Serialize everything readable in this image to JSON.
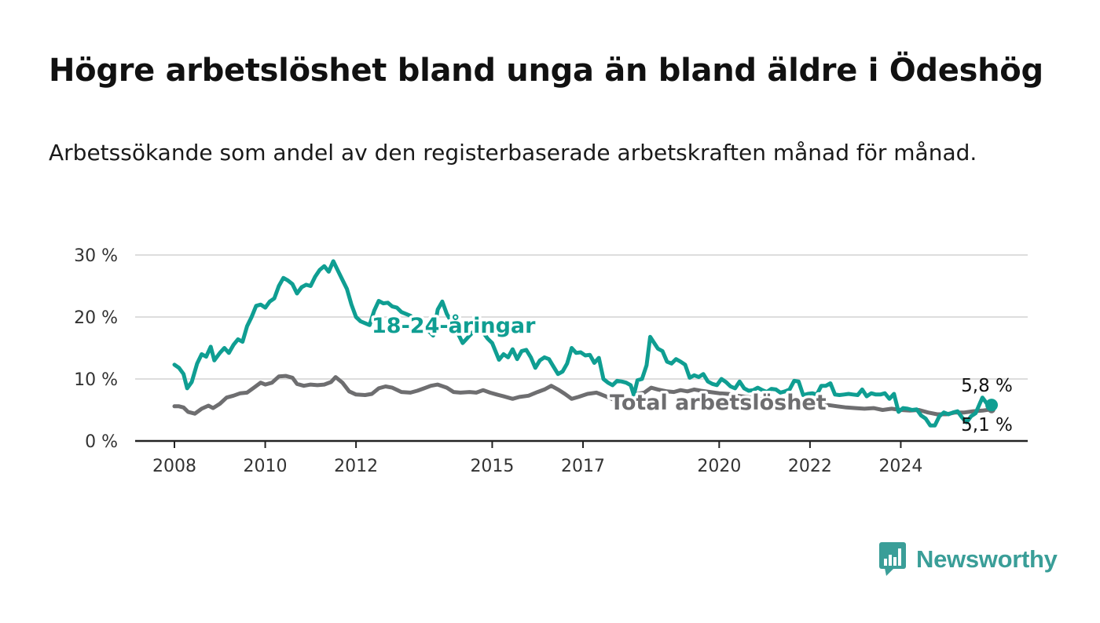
{
  "title": "Högre arbetslöshet bland unga än bland äldre i Ödeshög",
  "subtitle": "Arbetssökande som andel av den registerbaserade arbetskraften månad för månad.",
  "brand": {
    "name": "Newsworthy"
  },
  "colors": {
    "youth": "#0f9e92",
    "total": "#6e6e70",
    "axis": "#222222",
    "grid": "#dddddd"
  },
  "chart_data": {
    "type": "line",
    "xlim": [
      2007.75,
      2025.7
    ],
    "ylim": [
      0,
      30
    ],
    "y_ticks": [
      0,
      10,
      20,
      30
    ],
    "y_tick_labels": [
      "0 %",
      "10 %",
      "20 %",
      "30 %"
    ],
    "x_ticks": [
      2008,
      2010,
      2012,
      2015,
      2017,
      2020,
      2022,
      2024
    ],
    "x_tick_labels": [
      "2008",
      "2010",
      "2012",
      "2015",
      "2017",
      "2020",
      "2022",
      "2024"
    ],
    "grid": true,
    "series": [
      {
        "name": "18-24-åringar",
        "color": "#0f9e92",
        "end_label": "5,8 %",
        "points": [
          [
            2008.0,
            12.3
          ],
          [
            2008.1,
            11.8
          ],
          [
            2008.2,
            10.8
          ],
          [
            2008.28,
            8.5
          ],
          [
            2008.38,
            9.5
          ],
          [
            2008.5,
            12.5
          ],
          [
            2008.6,
            14.0
          ],
          [
            2008.7,
            13.6
          ],
          [
            2008.8,
            15.2
          ],
          [
            2008.88,
            13.0
          ],
          [
            2009.0,
            14.2
          ],
          [
            2009.1,
            15.0
          ],
          [
            2009.2,
            14.2
          ],
          [
            2009.3,
            15.5
          ],
          [
            2009.4,
            16.4
          ],
          [
            2009.5,
            16.0
          ],
          [
            2009.6,
            18.5
          ],
          [
            2009.7,
            20.0
          ],
          [
            2009.8,
            21.8
          ],
          [
            2009.9,
            22.0
          ],
          [
            2010.0,
            21.5
          ],
          [
            2010.1,
            22.5
          ],
          [
            2010.2,
            23.0
          ],
          [
            2010.3,
            25.0
          ],
          [
            2010.4,
            26.3
          ],
          [
            2010.5,
            25.9
          ],
          [
            2010.6,
            25.3
          ],
          [
            2010.7,
            23.8
          ],
          [
            2010.8,
            24.8
          ],
          [
            2010.9,
            25.2
          ],
          [
            2011.0,
            25.0
          ],
          [
            2011.1,
            26.5
          ],
          [
            2011.2,
            27.6
          ],
          [
            2011.3,
            28.2
          ],
          [
            2011.4,
            27.3
          ],
          [
            2011.5,
            29.0
          ],
          [
            2011.6,
            27.5
          ],
          [
            2011.7,
            26.0
          ],
          [
            2011.8,
            24.5
          ],
          [
            2011.9,
            22.0
          ],
          [
            2012.0,
            20.0
          ],
          [
            2012.1,
            19.3
          ],
          [
            2012.2,
            19.0
          ],
          [
            2012.3,
            18.7
          ],
          [
            2012.4,
            21.0
          ],
          [
            2012.5,
            22.6
          ],
          [
            2012.6,
            22.2
          ],
          [
            2012.7,
            22.3
          ],
          [
            2012.8,
            21.7
          ],
          [
            2012.9,
            21.5
          ],
          [
            2013.0,
            20.8
          ],
          [
            2013.2,
            20.2
          ],
          [
            2013.5,
            18.5
          ],
          [
            2013.7,
            17.0
          ],
          [
            2013.8,
            21.2
          ],
          [
            2013.9,
            22.5
          ],
          [
            2014.0,
            20.5
          ],
          [
            2014.2,
            18.0
          ],
          [
            2014.35,
            15.8
          ],
          [
            2014.5,
            17.0
          ],
          [
            2014.7,
            18.5
          ],
          [
            2014.9,
            16.5
          ],
          [
            2015.0,
            15.8
          ],
          [
            2015.15,
            13.1
          ],
          [
            2015.25,
            14.0
          ],
          [
            2015.35,
            13.5
          ],
          [
            2015.45,
            14.8
          ],
          [
            2015.55,
            13.2
          ],
          [
            2015.65,
            14.5
          ],
          [
            2015.75,
            14.7
          ],
          [
            2015.85,
            13.5
          ],
          [
            2015.95,
            11.8
          ],
          [
            2016.05,
            13.0
          ],
          [
            2016.15,
            13.5
          ],
          [
            2016.25,
            13.2
          ],
          [
            2016.35,
            12.0
          ],
          [
            2016.45,
            10.8
          ],
          [
            2016.55,
            11.2
          ],
          [
            2016.65,
            12.5
          ],
          [
            2016.75,
            15.0
          ],
          [
            2016.85,
            14.2
          ],
          [
            2016.95,
            14.3
          ],
          [
            2017.05,
            13.8
          ],
          [
            2017.15,
            13.9
          ],
          [
            2017.25,
            12.6
          ],
          [
            2017.35,
            13.4
          ],
          [
            2017.45,
            10.0
          ],
          [
            2017.55,
            9.4
          ],
          [
            2017.65,
            9.0
          ],
          [
            2017.75,
            9.7
          ],
          [
            2017.85,
            9.6
          ],
          [
            2017.95,
            9.4
          ],
          [
            2018.05,
            9.0
          ],
          [
            2018.12,
            7.4
          ],
          [
            2018.2,
            9.8
          ],
          [
            2018.3,
            10.0
          ],
          [
            2018.4,
            12.2
          ],
          [
            2018.48,
            16.8
          ],
          [
            2018.55,
            16.0
          ],
          [
            2018.65,
            14.9
          ],
          [
            2018.75,
            14.5
          ],
          [
            2018.85,
            12.8
          ],
          [
            2018.95,
            12.5
          ],
          [
            2019.05,
            13.2
          ],
          [
            2019.15,
            12.8
          ],
          [
            2019.25,
            12.3
          ],
          [
            2019.35,
            10.2
          ],
          [
            2019.45,
            10.6
          ],
          [
            2019.55,
            10.3
          ],
          [
            2019.65,
            10.8
          ],
          [
            2019.75,
            9.6
          ],
          [
            2019.85,
            9.2
          ],
          [
            2019.95,
            9.0
          ],
          [
            2020.05,
            10.0
          ],
          [
            2020.15,
            9.5
          ],
          [
            2020.25,
            8.8
          ],
          [
            2020.35,
            8.5
          ],
          [
            2020.45,
            9.6
          ],
          [
            2020.55,
            8.5
          ],
          [
            2020.65,
            8.1
          ],
          [
            2020.75,
            8.2
          ],
          [
            2020.85,
            8.6
          ],
          [
            2020.95,
            8.2
          ],
          [
            2021.05,
            7.9
          ],
          [
            2021.15,
            8.4
          ],
          [
            2021.25,
            8.3
          ],
          [
            2021.35,
            7.8
          ],
          [
            2021.45,
            8.0
          ],
          [
            2021.55,
            8.3
          ],
          [
            2021.65,
            9.7
          ],
          [
            2021.75,
            9.6
          ],
          [
            2021.85,
            7.4
          ],
          [
            2021.95,
            7.6
          ],
          [
            2022.05,
            7.7
          ],
          [
            2022.15,
            7.5
          ],
          [
            2022.25,
            8.9
          ],
          [
            2022.35,
            8.9
          ],
          [
            2022.45,
            9.3
          ],
          [
            2022.55,
            7.5
          ],
          [
            2022.65,
            7.4
          ],
          [
            2022.75,
            7.5
          ],
          [
            2022.85,
            7.6
          ],
          [
            2022.95,
            7.5
          ],
          [
            2023.05,
            7.4
          ],
          [
            2023.15,
            8.3
          ],
          [
            2023.25,
            7.2
          ],
          [
            2023.35,
            7.7
          ],
          [
            2023.45,
            7.5
          ],
          [
            2023.55,
            7.5
          ],
          [
            2023.65,
            7.7
          ],
          [
            2023.75,
            6.8
          ],
          [
            2023.85,
            7.6
          ],
          [
            2023.95,
            4.7
          ],
          [
            2024.05,
            5.3
          ],
          [
            2024.15,
            5.2
          ],
          [
            2024.25,
            5.0
          ],
          [
            2024.35,
            5.1
          ],
          [
            2024.45,
            4.1
          ],
          [
            2024.55,
            3.6
          ],
          [
            2024.65,
            2.5
          ],
          [
            2024.75,
            2.5
          ],
          [
            2024.85,
            4.0
          ],
          [
            2024.95,
            4.6
          ],
          [
            2025.05,
            4.3
          ],
          [
            2025.15,
            4.6
          ],
          [
            2025.25,
            4.8
          ],
          [
            2025.35,
            3.8
          ],
          [
            2025.45,
            3.0
          ],
          [
            2025.55,
            4.0
          ],
          [
            2025.65,
            4.5
          ],
          [
            2025.75,
            6.2
          ],
          [
            2025.8,
            7.0
          ],
          [
            2025.9,
            6.0
          ],
          [
            2026.0,
            5.8
          ]
        ]
      },
      {
        "name": "Total arbetslöshet",
        "color": "#6e6e70",
        "end_label": "5,1 %",
        "points": [
          [
            2008.0,
            5.6
          ],
          [
            2008.1,
            5.6
          ],
          [
            2008.2,
            5.4
          ],
          [
            2008.3,
            4.7
          ],
          [
            2008.45,
            4.4
          ],
          [
            2008.6,
            5.2
          ],
          [
            2008.75,
            5.7
          ],
          [
            2008.85,
            5.3
          ],
          [
            2009.0,
            6.0
          ],
          [
            2009.15,
            7.0
          ],
          [
            2009.3,
            7.3
          ],
          [
            2009.45,
            7.7
          ],
          [
            2009.6,
            7.8
          ],
          [
            2009.75,
            8.6
          ],
          [
            2009.9,
            9.4
          ],
          [
            2010.0,
            9.1
          ],
          [
            2010.15,
            9.4
          ],
          [
            2010.3,
            10.4
          ],
          [
            2010.45,
            10.5
          ],
          [
            2010.6,
            10.2
          ],
          [
            2010.7,
            9.2
          ],
          [
            2010.85,
            8.9
          ],
          [
            2011.0,
            9.1
          ],
          [
            2011.15,
            9.0
          ],
          [
            2011.3,
            9.1
          ],
          [
            2011.45,
            9.5
          ],
          [
            2011.55,
            10.3
          ],
          [
            2011.7,
            9.4
          ],
          [
            2011.85,
            8.0
          ],
          [
            2012.0,
            7.5
          ],
          [
            2012.2,
            7.4
          ],
          [
            2012.35,
            7.6
          ],
          [
            2012.5,
            8.5
          ],
          [
            2012.65,
            8.8
          ],
          [
            2012.8,
            8.6
          ],
          [
            2013.0,
            7.9
          ],
          [
            2013.2,
            7.8
          ],
          [
            2013.35,
            8.1
          ],
          [
            2013.5,
            8.5
          ],
          [
            2013.65,
            8.9
          ],
          [
            2013.8,
            9.1
          ],
          [
            2014.0,
            8.6
          ],
          [
            2014.15,
            7.9
          ],
          [
            2014.3,
            7.8
          ],
          [
            2014.5,
            7.9
          ],
          [
            2014.65,
            7.8
          ],
          [
            2014.8,
            8.2
          ],
          [
            2014.95,
            7.8
          ],
          [
            2015.1,
            7.5
          ],
          [
            2015.25,
            7.2
          ],
          [
            2015.45,
            6.8
          ],
          [
            2015.6,
            7.1
          ],
          [
            2015.8,
            7.3
          ],
          [
            2016.0,
            7.9
          ],
          [
            2016.15,
            8.3
          ],
          [
            2016.3,
            8.9
          ],
          [
            2016.45,
            8.3
          ],
          [
            2016.6,
            7.6
          ],
          [
            2016.75,
            6.8
          ],
          [
            2016.9,
            7.1
          ],
          [
            2017.1,
            7.6
          ],
          [
            2017.3,
            7.8
          ],
          [
            2017.5,
            7.2
          ],
          [
            2017.7,
            6.6
          ],
          [
            2017.9,
            6.6
          ],
          [
            2018.05,
            6.9
          ],
          [
            2018.2,
            7.6
          ],
          [
            2018.35,
            7.8
          ],
          [
            2018.5,
            8.6
          ],
          [
            2018.65,
            8.3
          ],
          [
            2018.85,
            8.0
          ],
          [
            2019.0,
            7.9
          ],
          [
            2019.15,
            8.2
          ],
          [
            2019.3,
            8.0
          ],
          [
            2019.45,
            8.3
          ],
          [
            2019.6,
            8.1
          ],
          [
            2019.8,
            7.9
          ],
          [
            2020.0,
            7.7
          ],
          [
            2020.2,
            7.6
          ],
          [
            2020.4,
            7.3
          ],
          [
            2020.6,
            7.1
          ],
          [
            2020.8,
            6.9
          ],
          [
            2021.0,
            6.7
          ],
          [
            2021.2,
            6.5
          ],
          [
            2021.4,
            6.3
          ],
          [
            2021.6,
            6.2
          ],
          [
            2021.8,
            6.0
          ],
          [
            2022.0,
            5.9
          ],
          [
            2022.2,
            5.8
          ],
          [
            2022.4,
            5.8
          ],
          [
            2022.6,
            5.6
          ],
          [
            2022.8,
            5.4
          ],
          [
            2023.0,
            5.3
          ],
          [
            2023.2,
            5.2
          ],
          [
            2023.4,
            5.3
          ],
          [
            2023.6,
            5.0
          ],
          [
            2023.8,
            5.2
          ],
          [
            2024.0,
            5.0
          ],
          [
            2024.2,
            4.9
          ],
          [
            2024.4,
            5.0
          ],
          [
            2024.6,
            4.6
          ],
          [
            2024.8,
            4.3
          ],
          [
            2025.0,
            4.3
          ],
          [
            2025.2,
            4.6
          ],
          [
            2025.4,
            4.6
          ],
          [
            2025.6,
            4.8
          ],
          [
            2025.8,
            4.9
          ],
          [
            2026.0,
            5.1
          ]
        ]
      }
    ]
  }
}
